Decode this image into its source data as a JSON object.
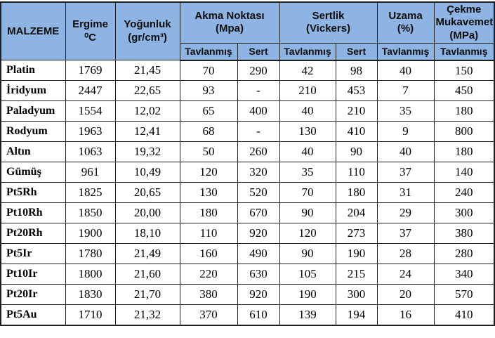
{
  "colors": {
    "header_bg": "#8DB4E2",
    "border": "#1F1F1F",
    "text": "#000000",
    "body_bg": "#FFFFFF"
  },
  "table": {
    "header": {
      "malzeme": "MALZEME",
      "ergime": [
        "Ergime",
        "⁰C"
      ],
      "yogunluk": [
        "Yoğunluk",
        "(gr/cm³)"
      ],
      "akma": [
        "Akma Noktası",
        "(Mpa)"
      ],
      "sertlik": [
        "Sertlik",
        "(Vickers)"
      ],
      "uzama": [
        "Uzama",
        "(%)"
      ],
      "cekme": [
        "Çekme",
        "Mukavemeti",
        "(MPa)"
      ]
    },
    "subheaders": [
      "Tavlanmış",
      "Sert",
      "Tavlanmış",
      "Sert",
      "Tavlanmış",
      "Tavlanmış"
    ],
    "rows": [
      {
        "name": "Platin",
        "values": [
          "1769",
          "21,45",
          "70",
          "290",
          "42",
          "98",
          "40",
          "150"
        ]
      },
      {
        "name": "İridyum",
        "values": [
          "2447",
          "22,65",
          "93",
          "-",
          "210",
          "453",
          "7",
          "450"
        ]
      },
      {
        "name": "Paladyum",
        "values": [
          "1554",
          "12,02",
          "65",
          "400",
          "40",
          "210",
          "35",
          "180"
        ]
      },
      {
        "name": "Rodyum",
        "values": [
          "1963",
          "12,41",
          "68",
          "-",
          "130",
          "410",
          "9",
          "800"
        ]
      },
      {
        "name": "Altın",
        "values": [
          "1063",
          "19,32",
          "50",
          "260",
          "40",
          "90",
          "40",
          "180"
        ]
      },
      {
        "name": "Gümüş",
        "values": [
          "961",
          "10,49",
          "120",
          "320",
          "35",
          "110",
          "37",
          "140"
        ]
      },
      {
        "name": "Pt5Rh",
        "values": [
          "1825",
          "20,65",
          "130",
          "520",
          "70",
          "180",
          "31",
          "240"
        ]
      },
      {
        "name": "Pt10Rh",
        "values": [
          "1850",
          "20,00",
          "180",
          "670",
          "90",
          "204",
          "29",
          "300"
        ]
      },
      {
        "name": "Pt20Rh",
        "values": [
          "1900",
          "18,10",
          "110",
          "920",
          "120",
          "273",
          "37",
          "380"
        ]
      },
      {
        "name": "Pt5Ir",
        "values": [
          "1780",
          "21,49",
          "160",
          "490",
          "90",
          "190",
          "28",
          "280"
        ]
      },
      {
        "name": "Pt10Ir",
        "values": [
          "1800",
          "21,60",
          "220",
          "630",
          "105",
          "215",
          "24",
          "340"
        ]
      },
      {
        "name": "Pt20Ir",
        "values": [
          "1830",
          "21,70",
          "380",
          "920",
          "190",
          "300",
          "20",
          "570"
        ]
      },
      {
        "name": "Pt5Au",
        "values": [
          "1710",
          "21,32",
          "370",
          "610",
          "139",
          "194",
          "16",
          "410"
        ]
      }
    ]
  }
}
